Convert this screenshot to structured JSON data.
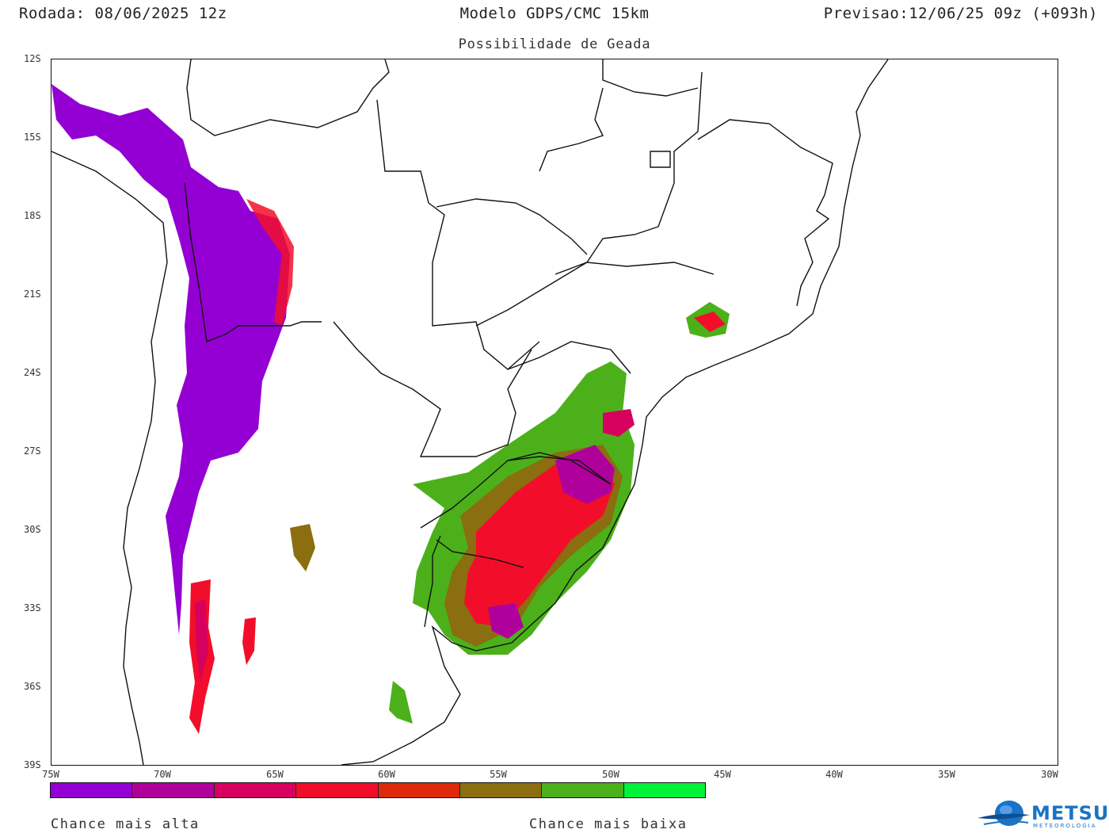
{
  "header": {
    "run": "Rodada: 08/06/2025 12z",
    "model": "Modelo GDPS/CMC 15km",
    "forecast": "Previsao:12/06/25 09z (+093h)"
  },
  "subtitle": "Possibilidade de Geada",
  "axes": {
    "lat_labels": [
      "12S",
      "15S",
      "18S",
      "21S",
      "24S",
      "27S",
      "30S",
      "33S",
      "36S",
      "39S"
    ],
    "lon_labels": [
      "75W",
      "70W",
      "65W",
      "60W",
      "55W",
      "50W",
      "45W",
      "40W",
      "35W",
      "30W"
    ]
  },
  "legend": {
    "colors": [
      "#9400d3",
      "#b0009c",
      "#d6005e",
      "#f20e2a",
      "#dd2a0a",
      "#8a6e10",
      "#4cb01a",
      "#00f23a"
    ],
    "left_label": "Chance mais alta",
    "right_label": "Chance mais baixa"
  },
  "logo": {
    "text": "METSUL",
    "subtext": "METEOROLOGIA"
  }
}
